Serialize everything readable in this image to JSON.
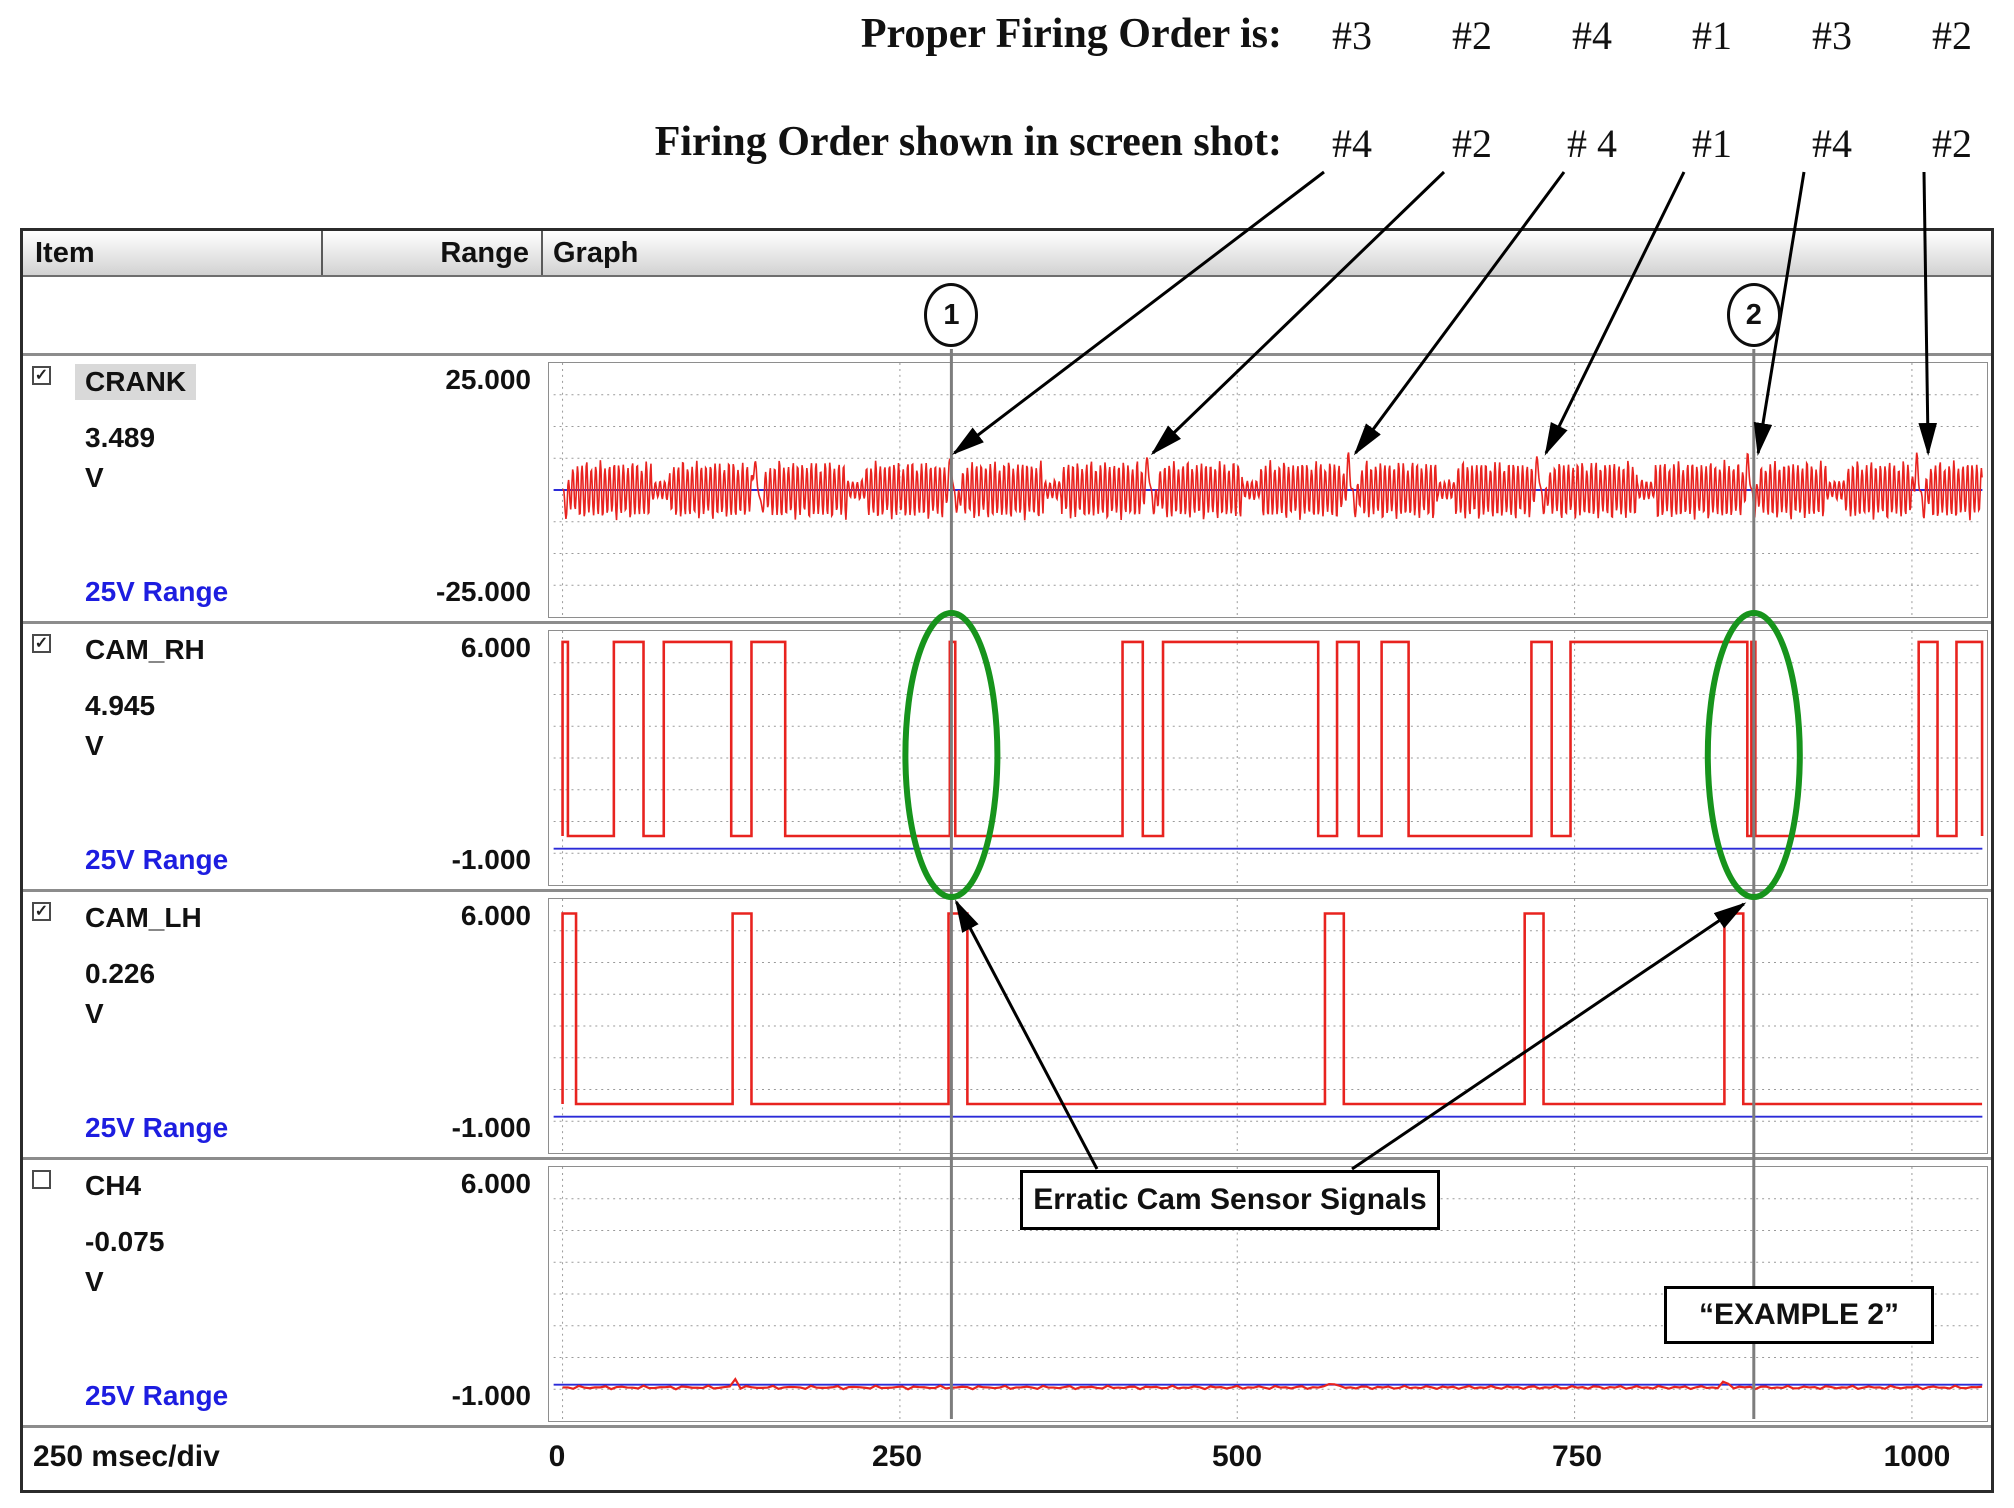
{
  "annotations": {
    "proper": {
      "label": "Proper Firing Order is:",
      "values": [
        "#3",
        "#2",
        "#4",
        "#1",
        "#3",
        "#2"
      ]
    },
    "shown": {
      "label": "Firing Order shown in screen shot:",
      "values": [
        "#4",
        "#2",
        "# 4",
        "#1",
        "#4",
        "#2"
      ],
      "arrow_targets_msec": [
        290,
        436,
        585,
        725,
        881,
        1006
      ]
    },
    "erratic_label": "Erratic Cam Sensor Signals",
    "example_label": "“EXAMPLE 2”"
  },
  "header": {
    "item": "Item",
    "range": "Range",
    "graph": "Graph"
  },
  "cursors": [
    {
      "label": "1",
      "msec": 290
    },
    {
      "label": "2",
      "msec": 880
    }
  ],
  "channels": [
    {
      "name": "CRANK",
      "checked": true,
      "highlighted": true,
      "value": "3.489",
      "unit": "V",
      "range_label": "25V Range",
      "range_max": "25.000",
      "range_min": "-25.000"
    },
    {
      "name": "CAM_RH",
      "checked": true,
      "highlighted": false,
      "value": "4.945",
      "unit": "V",
      "range_label": "25V Range",
      "range_max": "6.000",
      "range_min": "-1.000"
    },
    {
      "name": "CAM_LH",
      "checked": true,
      "highlighted": false,
      "value": "0.226",
      "unit": "V",
      "range_label": "25V Range",
      "range_max": "6.000",
      "range_min": "-1.000"
    },
    {
      "name": "CH4",
      "checked": false,
      "highlighted": false,
      "value": "-0.075",
      "unit": "V",
      "range_label": "25V Range",
      "range_max": "6.000",
      "range_min": "-1.000"
    }
  ],
  "footer": {
    "timebase": "250 msec/div",
    "ticks": [
      0,
      250,
      500,
      750,
      1000
    ]
  },
  "colors": {
    "trace": "#e8231f",
    "zero_line": "#2b2bd8",
    "range_text": "#1d1de0",
    "cursor": "#7d7d7d",
    "ellipse": "#17941c",
    "arrow": "#000000"
  },
  "chart_data": {
    "type": "line",
    "x_unit": "msec",
    "x_range": [
      0,
      1052
    ],
    "msec_per_div": 250,
    "series": [
      {
        "name": "CRANK",
        "kind": "crank_bursts",
        "v_range": [
          -25,
          25
        ],
        "amplitude_v": 6,
        "tooth_period_msec": 3.4,
        "sync_gaps_msec": [
          0,
          145,
          290,
          436,
          585,
          725,
          881,
          1006
        ],
        "midgap_factor": 0.35
      },
      {
        "name": "CAM_RH",
        "kind": "square",
        "v_range": [
          -1,
          6
        ],
        "high_v": 5.7,
        "low_v": 0.35,
        "high_segments_msec": [
          [
            0,
            4
          ],
          [
            38,
            60
          ],
          [
            75,
            125
          ],
          [
            140,
            165
          ],
          [
            287,
            291
          ],
          [
            415,
            430
          ],
          [
            445,
            560
          ],
          [
            574,
            590
          ],
          [
            607,
            627
          ],
          [
            718,
            733
          ],
          [
            747,
            878
          ],
          [
            881,
            884
          ],
          [
            1005,
            1019
          ],
          [
            1033,
            1052
          ]
        ]
      },
      {
        "name": "CAM_LH",
        "kind": "square",
        "v_range": [
          -1,
          6
        ],
        "high_v": 5.6,
        "low_v": 0.35,
        "high_segments_msec": [
          [
            0,
            10
          ],
          [
            126,
            140
          ],
          [
            286,
            300
          ],
          [
            565,
            579
          ],
          [
            713,
            727
          ],
          [
            861,
            875
          ]
        ]
      },
      {
        "name": "CH4",
        "kind": "flat",
        "v_range": [
          -1,
          6
        ],
        "level_v": -0.075,
        "noise_v": 0.05,
        "blips_msec": [
          128,
          570,
          862
        ]
      }
    ]
  }
}
